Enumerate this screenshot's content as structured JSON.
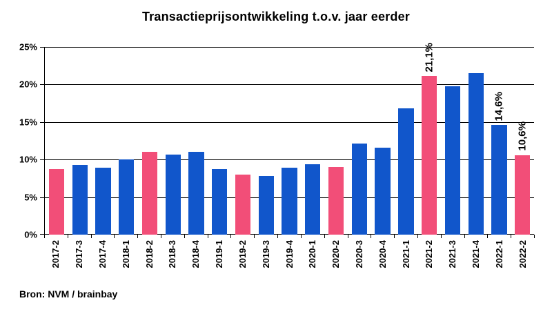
{
  "title": "Transactieprijsontwikkeling t.o.v. jaar eerder",
  "source": "Bron: NVM / brainbay",
  "colors": {
    "bar_blue": "#1156CB",
    "bar_pink": "#F24E78",
    "gridline": "#000000",
    "text": "#000000",
    "background": "#FFFFFF"
  },
  "chart_data": {
    "type": "bar",
    "title": "Transactieprijsontwikkeling t.o.v. jaar eerder",
    "categories": [
      "2017-2",
      "2017-3",
      "2017-4",
      "2018-1",
      "2018-2",
      "2018-3",
      "2018-4",
      "2019-1",
      "2019-2",
      "2019-3",
      "2019-4",
      "2020-1",
      "2020-2",
      "2020-3",
      "2020-4",
      "2021-1",
      "2021-2",
      "2021-3",
      "2021-4",
      "2022-1",
      "2022-2"
    ],
    "values": [
      8.7,
      9.3,
      8.9,
      10.0,
      11.0,
      10.7,
      11.0,
      8.7,
      8.0,
      7.8,
      8.9,
      9.4,
      9.0,
      12.1,
      11.6,
      16.8,
      21.1,
      19.8,
      21.5,
      14.6,
      10.6
    ],
    "highlight_indices": [
      0,
      4,
      8,
      12,
      16,
      20
    ],
    "highlight_meaning": "second-quarter bars shown in pink",
    "data_labels": [
      {
        "index": 16,
        "label": "21,1%"
      },
      {
        "index": 19,
        "label": "14,6%"
      },
      {
        "index": 20,
        "label": "10,6%"
      }
    ],
    "xlabel": "",
    "ylabel": "",
    "ylim": [
      0,
      25
    ],
    "ytick_labels": [
      "0%",
      "5%",
      "10%",
      "15%",
      "20%",
      "25%"
    ],
    "grid": true,
    "legend": false,
    "x_labels_rotation": "vertical-bottom-to-top"
  }
}
